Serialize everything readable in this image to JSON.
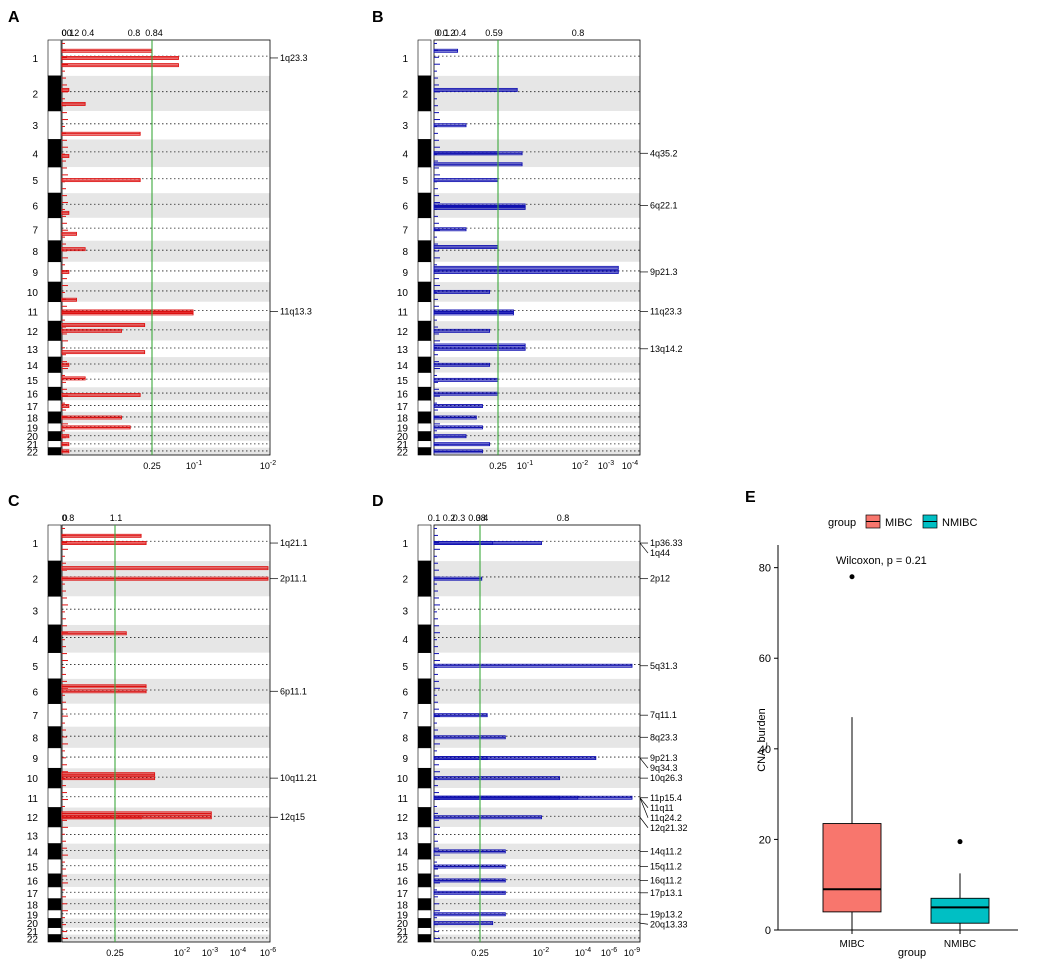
{
  "figure": {
    "title": ""
  },
  "chart_data": [
    {
      "panel": "A",
      "type": "bar",
      "orientation": "horizontal",
      "color": "#dd1111",
      "top_ticks": [
        "0",
        "0.1",
        "0.2",
        "0.4",
        "0.8",
        "0.84"
      ],
      "bottom_ticks": [
        "0.25",
        "10^-1",
        "10^-2"
      ],
      "threshold": 0.25,
      "chromosomes": [
        "1",
        "2",
        "3",
        "4",
        "5",
        "6",
        "7",
        "8",
        "9",
        "10",
        "11",
        "12",
        "13",
        "14",
        "15",
        "16",
        "17",
        "18",
        "19",
        "20",
        "21",
        "22"
      ],
      "peaks": [
        {
          "chr": "1",
          "label": "1q23.3",
          "q": 0.12
        },
        {
          "chr": "11",
          "label": "11q13.3",
          "q": 0.08
        }
      ],
      "segments": [
        {
          "chr": "1",
          "pos": 0.3,
          "q": 0.25
        },
        {
          "chr": "1",
          "pos": 0.7,
          "q": 0.12
        },
        {
          "chr": "2",
          "pos": 0.4,
          "q": 0.9
        },
        {
          "chr": "2",
          "pos": 0.8,
          "q": 0.7
        },
        {
          "chr": "3",
          "pos": 0.8,
          "q": 0.3
        },
        {
          "chr": "4",
          "pos": 0.6,
          "q": 0.9
        },
        {
          "chr": "5",
          "pos": 0.5,
          "q": 0.3
        },
        {
          "chr": "6",
          "pos": 0.8,
          "q": 0.9
        },
        {
          "chr": "7",
          "pos": 0.7,
          "q": 0.8
        },
        {
          "chr": "8",
          "pos": 0.4,
          "q": 0.7
        },
        {
          "chr": "9",
          "pos": 0.5,
          "q": 0.9
        },
        {
          "chr": "10",
          "pos": 0.9,
          "q": 0.8
        },
        {
          "chr": "11",
          "pos": 0.6,
          "q": 0.08
        },
        {
          "chr": "12",
          "pos": 0.2,
          "q": 0.28
        },
        {
          "chr": "12",
          "pos": 0.5,
          "q": 0.4
        },
        {
          "chr": "13",
          "pos": 0.7,
          "q": 0.28
        },
        {
          "chr": "14",
          "pos": 0.5,
          "q": 0.9
        },
        {
          "chr": "15",
          "pos": 0.4,
          "q": 0.7
        },
        {
          "chr": "16",
          "pos": 0.6,
          "q": 0.3
        },
        {
          "chr": "17",
          "pos": 0.5,
          "q": 0.9
        },
        {
          "chr": "18",
          "pos": 0.5,
          "q": 0.4
        },
        {
          "chr": "19",
          "pos": 0.5,
          "q": 0.35
        },
        {
          "chr": "20",
          "pos": 0.5,
          "q": 0.9
        },
        {
          "chr": "21",
          "pos": 0.5,
          "q": 0.9
        },
        {
          "chr": "22",
          "pos": 0.5,
          "q": 0.9
        }
      ]
    },
    {
      "panel": "B",
      "type": "bar",
      "orientation": "horizontal",
      "color": "#1010b0",
      "top_ticks": [
        "0",
        "0.1",
        "0.2",
        "0.4",
        "0.59",
        "0.8"
      ],
      "bottom_ticks": [
        "0.25",
        "10^-1",
        "10^-2",
        "10^-3",
        "10^-4"
      ],
      "threshold": 0.25,
      "chromosomes": [
        "1",
        "2",
        "3",
        "4",
        "5",
        "6",
        "7",
        "8",
        "9",
        "10",
        "11",
        "12",
        "13",
        "14",
        "15",
        "16",
        "17",
        "18",
        "19",
        "20",
        "21",
        "22"
      ],
      "peaks": [
        {
          "chr": "4",
          "label": "4q35.2",
          "q": 0.06
        },
        {
          "chr": "6",
          "label": "6q22.1",
          "q": 0.05
        },
        {
          "chr": "9",
          "label": "9p21.3",
          "q": 0.0002
        },
        {
          "chr": "11",
          "label": "11q23.3",
          "q": 0.1
        },
        {
          "chr": "13",
          "label": "13q14.2",
          "q": 0.05
        }
      ],
      "segments": [
        {
          "chr": "1",
          "pos": 0.3,
          "q": 0.6
        },
        {
          "chr": "2",
          "pos": 0.4,
          "q": 0.08
        },
        {
          "chr": "3",
          "pos": 0.5,
          "q": 0.5
        },
        {
          "chr": "4",
          "pos": 0.5,
          "q": 0.25
        },
        {
          "chr": "4",
          "pos": 0.9,
          "q": 0.06
        },
        {
          "chr": "5",
          "pos": 0.5,
          "q": 0.25
        },
        {
          "chr": "6",
          "pos": 0.6,
          "q": 0.05
        },
        {
          "chr": "7",
          "pos": 0.5,
          "q": 0.5
        },
        {
          "chr": "8",
          "pos": 0.3,
          "q": 0.25
        },
        {
          "chr": "9",
          "pos": 0.3,
          "q": 0.0002
        },
        {
          "chr": "10",
          "pos": 0.5,
          "q": 0.3
        },
        {
          "chr": "11",
          "pos": 0.6,
          "q": 0.1
        },
        {
          "chr": "12",
          "pos": 0.5,
          "q": 0.3
        },
        {
          "chr": "13",
          "pos": 0.3,
          "q": 0.05
        },
        {
          "chr": "14",
          "pos": 0.5,
          "q": 0.3
        },
        {
          "chr": "15",
          "pos": 0.5,
          "q": 0.25
        },
        {
          "chr": "16",
          "pos": 0.5,
          "q": 0.25
        },
        {
          "chr": "17",
          "pos": 0.5,
          "q": 0.35
        },
        {
          "chr": "18",
          "pos": 0.5,
          "q": 0.4
        },
        {
          "chr": "19",
          "pos": 0.5,
          "q": 0.35
        },
        {
          "chr": "20",
          "pos": 0.5,
          "q": 0.5
        },
        {
          "chr": "21",
          "pos": 0.5,
          "q": 0.3
        },
        {
          "chr": "22",
          "pos": 0.5,
          "q": 0.35
        }
      ]
    },
    {
      "panel": "C",
      "type": "bar",
      "orientation": "horizontal",
      "color": "#dd1111",
      "top_ticks": [
        "0",
        "0.8",
        "1.1"
      ],
      "bottom_ticks": [
        "0.25",
        "10^-2",
        "10^-3",
        "10^-4",
        "10^-6"
      ],
      "threshold": 0.25,
      "chromosomes": [
        "1",
        "2",
        "3",
        "4",
        "5",
        "6",
        "7",
        "8",
        "9",
        "10",
        "11",
        "12",
        "13",
        "14",
        "15",
        "16",
        "17",
        "18",
        "19",
        "20",
        "21",
        "22"
      ],
      "peaks": [
        {
          "chr": "1",
          "label": "1q21.1",
          "q": 0.02
        },
        {
          "chr": "2",
          "label": "2p11.1",
          "q": 1e-06
        },
        {
          "chr": "6",
          "label": "6p11.1",
          "q": 0.02
        },
        {
          "chr": "10",
          "label": "10q11.21",
          "q": 0.01
        },
        {
          "chr": "12",
          "label": "12q15",
          "q": 0.0001
        }
      ],
      "segments": [
        {
          "chr": "1",
          "pos": 0.3,
          "q": 0.03
        },
        {
          "chr": "2",
          "pos": 0.2,
          "q": 1e-06
        },
        {
          "chr": "4",
          "pos": 0.3,
          "q": 0.1
        },
        {
          "chr": "6",
          "pos": 0.3,
          "q": 0.02
        },
        {
          "chr": "10",
          "pos": 0.3,
          "q": 0.01
        },
        {
          "chr": "12",
          "pos": 0.3,
          "q": 0.0001
        },
        {
          "chr": "12",
          "pos": 0.5,
          "q": 0.03
        }
      ]
    },
    {
      "panel": "D",
      "type": "bar",
      "orientation": "horizontal",
      "color": "#1010b0",
      "top_ticks": [
        "0.1",
        "0.2",
        "0.3",
        "0.38",
        "0.4",
        "0.8"
      ],
      "bottom_ticks": [
        "0.25",
        "10^-2",
        "10^-4",
        "10^-6",
        "10^-9"
      ],
      "threshold": 0.25,
      "chromosomes": [
        "1",
        "2",
        "3",
        "4",
        "5",
        "6",
        "7",
        "8",
        "9",
        "10",
        "11",
        "12",
        "13",
        "14",
        "15",
        "16",
        "17",
        "18",
        "19",
        "20",
        "21",
        "22"
      ],
      "peaks": [
        {
          "chr": "1",
          "label": "1p36.33",
          "q": 0.05
        },
        {
          "chr": "1",
          "label": "1q44",
          "q": 0.0001
        },
        {
          "chr": "2",
          "label": "2p12",
          "q": 0.2
        },
        {
          "chr": "5",
          "label": "5q31.3",
          "q": 1e-09
        },
        {
          "chr": "7",
          "label": "7q11.1",
          "q": 0.1
        },
        {
          "chr": "8",
          "label": "8q23.3",
          "q": 0.01
        },
        {
          "chr": "9",
          "label": "9p21.3",
          "q": 1e-07
        },
        {
          "chr": "9",
          "label": "9q34.3",
          "q": 0.1
        },
        {
          "chr": "10",
          "label": "10q26.3",
          "q": 1e-05
        },
        {
          "chr": "11",
          "label": "11p15.4",
          "q": 1e-09
        },
        {
          "chr": "11",
          "label": "11q11",
          "q": 1e-06
        },
        {
          "chr": "11",
          "label": "11q24.2",
          "q": 1e-05
        },
        {
          "chr": "12",
          "label": "12q21.32",
          "q": 0.0001
        },
        {
          "chr": "14",
          "label": "14q11.2",
          "q": 0.01
        },
        {
          "chr": "15",
          "label": "15q11.2",
          "q": 0.01
        },
        {
          "chr": "16",
          "label": "16q11.2",
          "q": 0.01
        },
        {
          "chr": "17",
          "label": "17p13.1",
          "q": 0.01
        },
        {
          "chr": "19",
          "label": "19p13.2",
          "q": 0.01
        },
        {
          "chr": "20",
          "label": "20q13.33",
          "q": 0.05
        }
      ],
      "segments": []
    },
    {
      "panel": "E",
      "type": "box",
      "title": "",
      "xlabel": "group",
      "ylabel": "CNA_burden",
      "ylim": [
        0,
        85
      ],
      "yticks": [
        0,
        20,
        40,
        60,
        80
      ],
      "legend": {
        "title": "group",
        "entries": [
          "MIBC",
          "NMIBC"
        ]
      },
      "annotation": "Wilcoxon, p = 0.21",
      "categories": [
        "MIBC",
        "NMIBC"
      ],
      "colors": [
        "#f8766d",
        "#00bfc4"
      ],
      "boxes": [
        {
          "name": "MIBC",
          "min": 0,
          "q1": 4,
          "median": 9,
          "q3": 23.5,
          "max": 47,
          "outliers": [
            78
          ]
        },
        {
          "name": "NMIBC",
          "min": 0,
          "q1": 1.5,
          "median": 5,
          "q3": 7,
          "max": 12.5,
          "outliers": [
            19.5
          ]
        }
      ]
    }
  ]
}
